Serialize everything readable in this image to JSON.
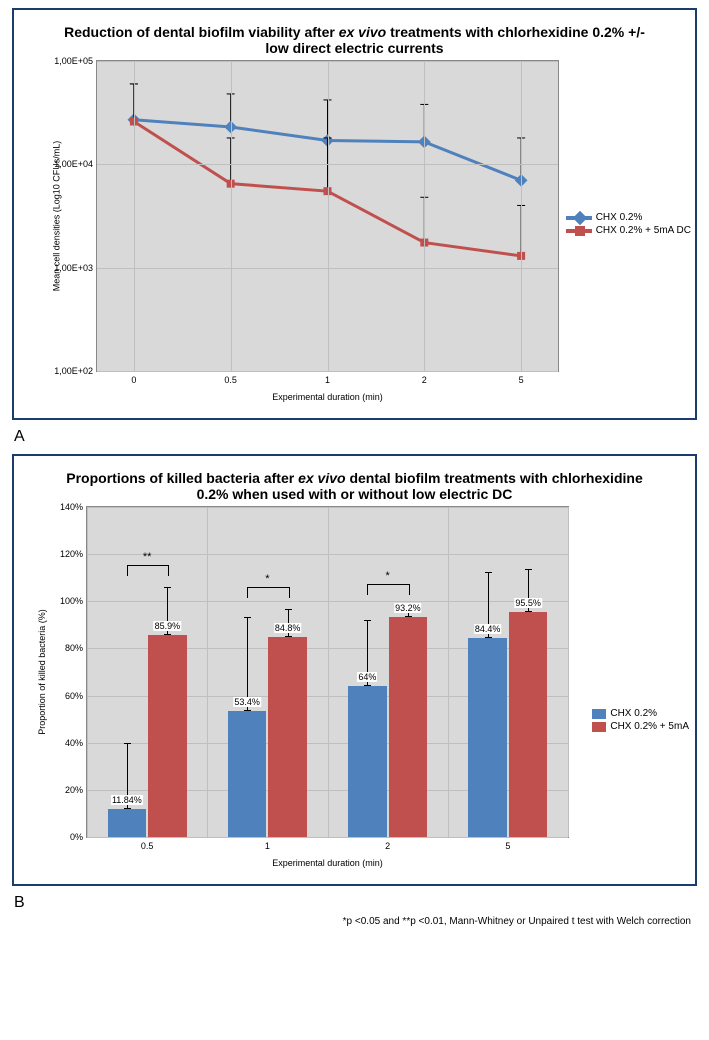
{
  "chartA": {
    "type": "line",
    "background_color": "#d9d9d9",
    "grid_color": "#bfbfbf",
    "title_pre": "Reduction of dental biofilm viability after ",
    "title_ital": "ex vivo",
    "title_post": " treatments  with chlorhexidine 0.2% +/- low direct electric currents",
    "title_fontsize": 14,
    "ylabel": "Mean cell densities (Log10  CFUs/mL)",
    "xlabel": "Experimental duration (min)",
    "label_fontsize": 9,
    "yscale": "log",
    "ylim": [
      100,
      100000
    ],
    "ytick_values": [
      100,
      1000,
      10000,
      100000
    ],
    "ytick_labels": [
      "1,00E+02",
      "1,00E+03",
      "1,00E+04",
      "1,00E+05"
    ],
    "x_categories": [
      "0",
      "0.5",
      "1",
      "2",
      "5"
    ],
    "series": [
      {
        "name": "CHX 0.2%",
        "color": "#4f81bd",
        "line_width": 3,
        "marker": "diamond",
        "marker_size": 9,
        "y": [
          27000,
          23000,
          17000,
          16500,
          7000
        ],
        "err_up": [
          60000,
          48000,
          42000,
          38000,
          18000
        ]
      },
      {
        "name": "CHX 0.2% + 5mA DC",
        "color": "#c0504d",
        "line_width": 3,
        "marker": "square",
        "marker_size": 8,
        "y": [
          26000,
          6500,
          5500,
          1750,
          1300
        ],
        "err_up": [
          60000,
          18000,
          18000,
          4800,
          4000
        ]
      }
    ],
    "legend_pos": "right"
  },
  "chartB": {
    "type": "bar",
    "background_color": "#d9d9d9",
    "grid_color": "#bfbfbf",
    "title_pre": "Proportions of killed bacteria after ",
    "title_ital": "ex vivo",
    "title_post": " dental biofilm treatments with chlorhexidine 0.2% when used with or without low electric DC",
    "title_fontsize": 14,
    "ylabel": "Proportion of killed bacteria (%)",
    "xlabel": "Experimental duration (min)",
    "label_fontsize": 9,
    "ylim": [
      0,
      140
    ],
    "ytick_step": 20,
    "ytick_labels": [
      "0%",
      "20%",
      "40%",
      "60%",
      "80%",
      "100%",
      "120%",
      "140%"
    ],
    "x_categories": [
      "0.5",
      "1",
      "2",
      "5"
    ],
    "bar_width": 0.32,
    "series": [
      {
        "name": "CHX 0.2%",
        "color": "#4f81bd",
        "values": [
          11.84,
          53.4,
          64,
          84.4
        ],
        "labels": [
          "11.84%",
          "53.4%",
          "64%",
          "84.4%"
        ],
        "err": [
          28,
          40,
          28,
          28
        ]
      },
      {
        "name": "CHX 0.2% + 5mA",
        "color": "#c0504d",
        "values": [
          85.9,
          84.8,
          93.2,
          95.5
        ],
        "labels": [
          "85.9%",
          "84.8%",
          "93.2%",
          "95.5%"
        ],
        "err": [
          20,
          12,
          5,
          18
        ]
      }
    ],
    "significance": [
      {
        "group": 0,
        "label": "**"
      },
      {
        "group": 1,
        "label": "*"
      },
      {
        "group": 2,
        "label": "*"
      }
    ],
    "legend_pos": "right",
    "footnote": "*p <0.05 and **p <0.01, Mann-Whitney or Unpaired t test with Welch correction"
  },
  "panelA_letter": "A",
  "panelB_letter": "B"
}
